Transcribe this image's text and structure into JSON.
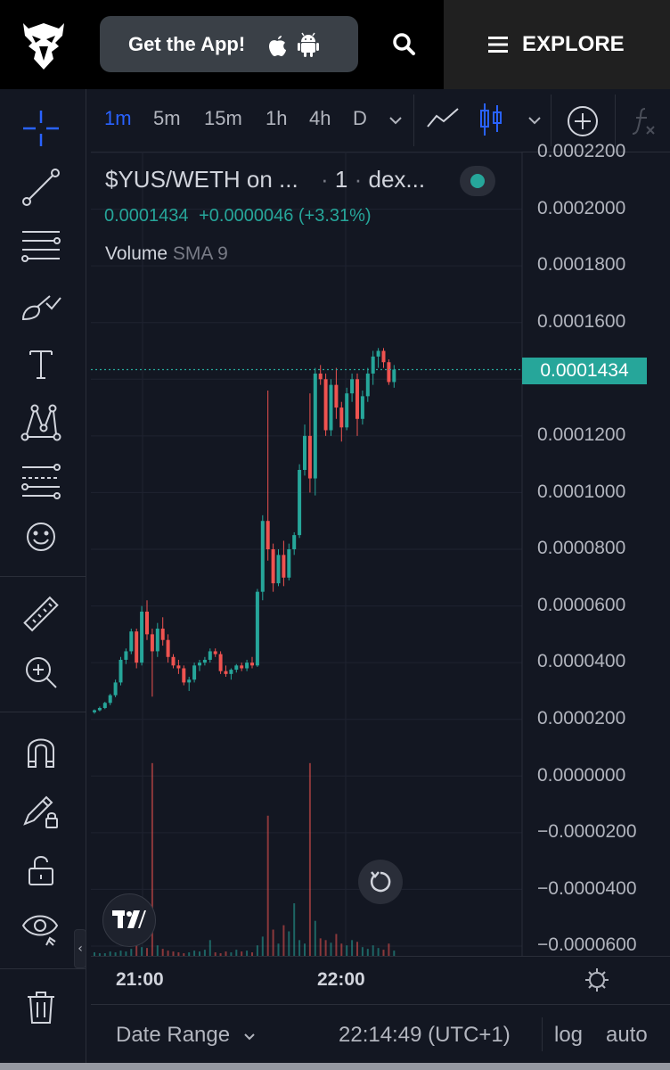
{
  "header": {
    "get_app_label": "Get the App!",
    "explore_label": "EXPLORE"
  },
  "timeframes": [
    "1m",
    "5m",
    "15m",
    "1h",
    "4h",
    "D"
  ],
  "active_timeframe": "1m",
  "legend": {
    "symbol": "$YUS/WETH on ...",
    "interval": "1",
    "exchange": "dex...",
    "price": "0.0001434",
    "change": "+0.0000046 (+3.31%)",
    "indicator_name": "Volume",
    "indicator_params": "SMA 9"
  },
  "current_price_label": "0.0001434",
  "price_axis_labels": [
    "0.0002200",
    "0.0002000",
    "0.0001800",
    "0.0001600",
    "0.0001400",
    "0.0001200",
    "0.0001000",
    "0.0000800",
    "0.0000600",
    "0.0000400",
    "0.0000200",
    "0.0000000",
    "−0.0000200",
    "−0.0000400",
    "−0.0000600"
  ],
  "time_axis": [
    "21:00",
    "22:00"
  ],
  "bottom": {
    "date_range_label": "Date Range",
    "clock": "22:14:49 (UTC+1)",
    "log_label": "log",
    "auto_label": "auto"
  },
  "colors": {
    "up": "#26a69a",
    "down": "#ef5350",
    "accent": "#2962ff",
    "background": "#131722"
  },
  "chart_data": {
    "type": "candlestick",
    "time_ticks": [
      "21:00",
      "22:00"
    ],
    "ylim": [
      -6e-05,
      0.00022
    ],
    "last_price": 0.0001434,
    "candles": [
      [
        2.25e-05,
        2.35e-05,
        2.2e-05,
        2.32e-05
      ],
      [
        2.32e-05,
        2.45e-05,
        2.28e-05,
        2.4e-05
      ],
      [
        2.4e-05,
        2.62e-05,
        2.36e-05,
        2.58e-05
      ],
      [
        2.58e-05,
        2.9e-05,
        2.5e-05,
        2.85e-05
      ],
      [
        2.85e-05,
        3.4e-05,
        2.78e-05,
        3.3e-05
      ],
      [
        3.3e-05,
        4.2e-05,
        3.2e-05,
        4.1e-05
      ],
      [
        4.1e-05,
        4.5e-05,
        3.95e-05,
        4.4e-05
      ],
      [
        4.4e-05,
        5.2e-05,
        4.3e-05,
        5.1e-05
      ],
      [
        5.1e-05,
        5.2e-05,
        3.8e-05,
        4e-05
      ],
      [
        4e-05,
        6e-05,
        3.9e-05,
        5.8e-05
      ],
      [
        5.8e-05,
        6.2e-05,
        4.8e-05,
        5e-05
      ],
      [
        5e-05,
        5.2e-05,
        2.8e-05,
        4.4e-05
      ],
      [
        4.4e-05,
        5.4e-05,
        4.2e-05,
        5.2e-05
      ],
      [
        5.2e-05,
        5.6e-05,
        4.6e-05,
        4.8e-05
      ],
      [
        4.8e-05,
        5e-05,
        4e-05,
        4.2e-05
      ],
      [
        4.2e-05,
        4.3e-05,
        3.8e-05,
        3.9e-05
      ],
      [
        3.9e-05,
        4.1e-05,
        3.6e-05,
        3.8e-05
      ],
      [
        3.8e-05,
        3.9e-05,
        3.2e-05,
        3.3e-05
      ],
      [
        3.3e-05,
        3.5e-05,
        3e-05,
        3.4e-05
      ],
      [
        3.4e-05,
        4e-05,
        3.3e-05,
        3.9e-05
      ],
      [
        3.9e-05,
        4.1e-05,
        3.7e-05,
        4e-05
      ],
      [
        4e-05,
        4.2e-05,
        3.9e-05,
        4.1e-05
      ],
      [
        4.1e-05,
        4.5e-05,
        4e-05,
        4.4e-05
      ],
      [
        4.4e-05,
        4.5e-05,
        4.2e-05,
        4.3e-05
      ],
      [
        4.3e-05,
        4.4e-05,
        3.6e-05,
        3.7e-05
      ],
      [
        3.7e-05,
        3.9e-05,
        3.5e-05,
        3.6e-05
      ],
      [
        3.6e-05,
        3.8e-05,
        3.4e-05,
        3.75e-05
      ],
      [
        3.75e-05,
        3.95e-05,
        3.65e-05,
        3.9e-05
      ],
      [
        3.9e-05,
        4e-05,
        3.7e-05,
        3.8e-05
      ],
      [
        3.8e-05,
        4.1e-05,
        3.7e-05,
        4e-05
      ],
      [
        4e-05,
        4.2e-05,
        3.8e-05,
        3.9e-05
      ],
      [
        3.9e-05,
        6.6e-05,
        3.85e-05,
        6.5e-05
      ],
      [
        6.5e-05,
        9.2e-05,
        6.2e-05,
        9e-05
      ],
      [
        9e-05,
        0.000136,
        7.6e-05,
        8e-05
      ],
      [
        8e-05,
        8.2e-05,
        6.5e-05,
        6.8e-05
      ],
      [
        6.8e-05,
        8e-05,
        6.7e-05,
        7.8e-05
      ],
      [
        7.8e-05,
        8.3e-05,
        6.7e-05,
        7e-05
      ],
      [
        7e-05,
        8.2e-05,
        6.9e-05,
        8e-05
      ],
      [
        8e-05,
        8.6e-05,
        7.8e-05,
        8.5e-05
      ],
      [
        8.5e-05,
        0.00011,
        8.4e-05,
        0.000108
      ],
      [
        0.000108,
        0.000124,
        0.000106,
        0.00012
      ],
      [
        0.00012,
        0.000135,
        0.0001,
        0.000105
      ],
      [
        0.000105,
        0.000144,
        9.9e-05,
        0.000142
      ],
      [
        0.000142,
        0.000145,
        0.000138,
        0.00014
      ],
      [
        0.00014,
        0.000142,
        0.00012,
        0.000122
      ],
      [
        0.000122,
        0.00014,
        0.00012,
        0.000138
      ],
      [
        0.000138,
        0.000144,
        0.000126,
        0.00013
      ],
      [
        0.00013,
        0.000132,
        0.000118,
        0.000123
      ],
      [
        0.000123,
        0.000137,
        0.000122,
        0.000135
      ],
      [
        0.000135,
        0.000142,
        0.000132,
        0.00014
      ],
      [
        0.00014,
        0.000142,
        0.00012,
        0.000126
      ],
      [
        0.000126,
        0.000136,
        0.000124,
        0.000134
      ],
      [
        0.000134,
        0.000144,
        0.000132,
        0.000142
      ],
      [
        0.000142,
        0.00015,
        0.000138,
        0.000148
      ],
      [
        0.000148,
        0.000151,
        0.000144,
        0.00015
      ],
      [
        0.00015,
        0.000151,
        0.000144,
        0.000146
      ],
      [
        0.000146,
        0.000147,
        0.000138,
        0.000139
      ],
      [
        0.000139,
        0.000145,
        0.000137,
        0.0001434
      ]
    ],
    "volume": [
      4,
      3,
      3,
      5,
      4,
      6,
      5,
      8,
      40,
      10,
      9,
      220,
      12,
      8,
      6,
      5,
      4,
      3,
      4,
      6,
      5,
      7,
      18,
      4,
      3,
      5,
      4,
      7,
      5,
      6,
      4,
      12,
      22,
      160,
      30,
      14,
      35,
      28,
      60,
      18,
      14,
      220,
      40,
      20,
      18,
      15,
      25,
      14,
      12,
      18,
      16,
      10,
      8,
      12,
      9,
      7,
      14,
      6
    ]
  }
}
